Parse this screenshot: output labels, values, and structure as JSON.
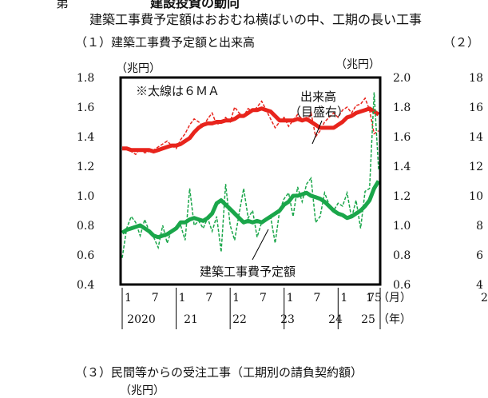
{
  "header": {
    "top_fragment": "第",
    "top_title": "建設投資の動向",
    "subtitle": "建築工事費予定額はおおむね横ばいの中、工期の長い工事",
    "panel1_title": "（１）建築工事費予定額と出来高",
    "panel2_label": "（２）",
    "panel3_title": "（３）民間等からの受注工事（工期別の請負契約額）",
    "panel3_unit": "（兆円）"
  },
  "chart_data": {
    "type": "line",
    "annotation_ma": "※太線は６ＭＡ",
    "label_dekidaka": [
      "出来高",
      "（目盛右）"
    ],
    "label_kenchiku": "建築工事費予定額",
    "y_left": {
      "unit": "（兆円）",
      "ticks": [
        "1.8",
        "1.6",
        "1.4",
        "1.2",
        "1.0",
        "0.8",
        "0.6",
        "0.4"
      ],
      "range": [
        0.4,
        1.8
      ]
    },
    "y_right": {
      "unit": "（兆円）",
      "ticks": [
        "2.0",
        "1.8",
        "1.6",
        "1.4",
        "1.2",
        "1.0",
        "0.8",
        "0.6"
      ],
      "range": [
        0.6,
        2.0
      ]
    },
    "x_month_ticks": [
      "1",
      "7",
      "1",
      "7",
      "1",
      "7",
      "1",
      "7",
      "1",
      "7",
      "1",
      "5"
    ],
    "x_month_unit": "（月）",
    "x_years": [
      "2020",
      "21",
      "22",
      "23",
      "24",
      "25"
    ],
    "x_year_unit": "（年）",
    "series": [
      {
        "axis": "right",
        "color": "#e8241c",
        "monthly": [
          1.52,
          1.53,
          1.5,
          1.48,
          1.52,
          1.49,
          1.5,
          1.51,
          1.53,
          1.55,
          1.57,
          1.54,
          1.52,
          1.58,
          1.62,
          1.68,
          1.72,
          1.7,
          1.67,
          1.72,
          1.76,
          1.68,
          1.7,
          1.73,
          1.7,
          1.8,
          1.76,
          1.74,
          1.79,
          1.77,
          1.8,
          1.84,
          1.78,
          1.72,
          1.66,
          1.7,
          1.73,
          1.67,
          1.71,
          1.75,
          1.72,
          1.7,
          1.76,
          1.6,
          1.64,
          1.7,
          1.73,
          1.76,
          1.73,
          1.78,
          1.8,
          1.76,
          1.81,
          1.82,
          1.86,
          1.78,
          1.62,
          1.64
        ],
        "ma6": [
          1.52,
          1.52,
          1.51,
          1.51,
          1.51,
          1.51,
          1.51,
          1.5,
          1.51,
          1.52,
          1.53,
          1.54,
          1.54,
          1.55,
          1.57,
          1.59,
          1.63,
          1.66,
          1.68,
          1.69,
          1.69,
          1.7,
          1.7,
          1.71,
          1.71,
          1.72,
          1.74,
          1.74,
          1.76,
          1.78,
          1.78,
          1.79,
          1.78,
          1.77,
          1.74,
          1.71,
          1.71,
          1.71,
          1.71,
          1.72,
          1.71,
          1.72,
          1.7,
          1.68,
          1.66,
          1.66,
          1.66,
          1.66,
          1.68,
          1.7,
          1.73,
          1.74,
          1.76,
          1.77,
          1.78,
          1.79,
          1.77,
          1.75
        ]
      },
      {
        "axis": "left",
        "color": "#1aa64a",
        "monthly": [
          0.58,
          0.78,
          0.86,
          0.82,
          0.73,
          0.84,
          0.76,
          0.72,
          0.65,
          0.8,
          0.68,
          0.77,
          0.78,
          0.8,
          0.7,
          1.05,
          0.8,
          0.83,
          0.78,
          0.85,
          0.76,
          0.86,
          0.62,
          1.08,
          0.8,
          0.7,
          0.88,
          1.05,
          0.85,
          0.9,
          0.72,
          0.82,
          0.83,
          0.86,
          0.68,
          0.9,
          0.98,
          1.02,
          0.86,
          1.06,
          0.96,
          1.08,
          1.12,
          0.82,
          0.86,
          1.02,
          0.94,
          0.9,
          0.95,
          0.93,
          1.02,
          0.85,
          0.97,
          0.78,
          1.03,
          1.05,
          1.7,
          1.18
        ],
        "ma6": [
          0.75,
          0.77,
          0.78,
          0.79,
          0.8,
          0.78,
          0.76,
          0.73,
          0.72,
          0.73,
          0.74,
          0.76,
          0.78,
          0.82,
          0.82,
          0.84,
          0.85,
          0.84,
          0.83,
          0.85,
          0.88,
          0.95,
          0.97,
          0.94,
          0.91,
          0.88,
          0.85,
          0.82,
          0.83,
          0.82,
          0.83,
          0.82,
          0.84,
          0.86,
          0.88,
          0.9,
          0.94,
          0.96,
          1.0,
          1.0,
          1.01,
          1.02,
          1.0,
          0.99,
          0.98,
          0.96,
          0.93,
          0.9,
          0.88,
          0.87,
          0.85,
          0.86,
          0.88,
          0.9,
          0.93,
          0.97,
          1.05,
          1.1
        ]
      }
    ]
  },
  "panel2": {
    "y_ticks": [
      "18",
      "16",
      "14",
      "12",
      "10",
      "8",
      "6",
      "4"
    ],
    "x_fragment": "2"
  }
}
